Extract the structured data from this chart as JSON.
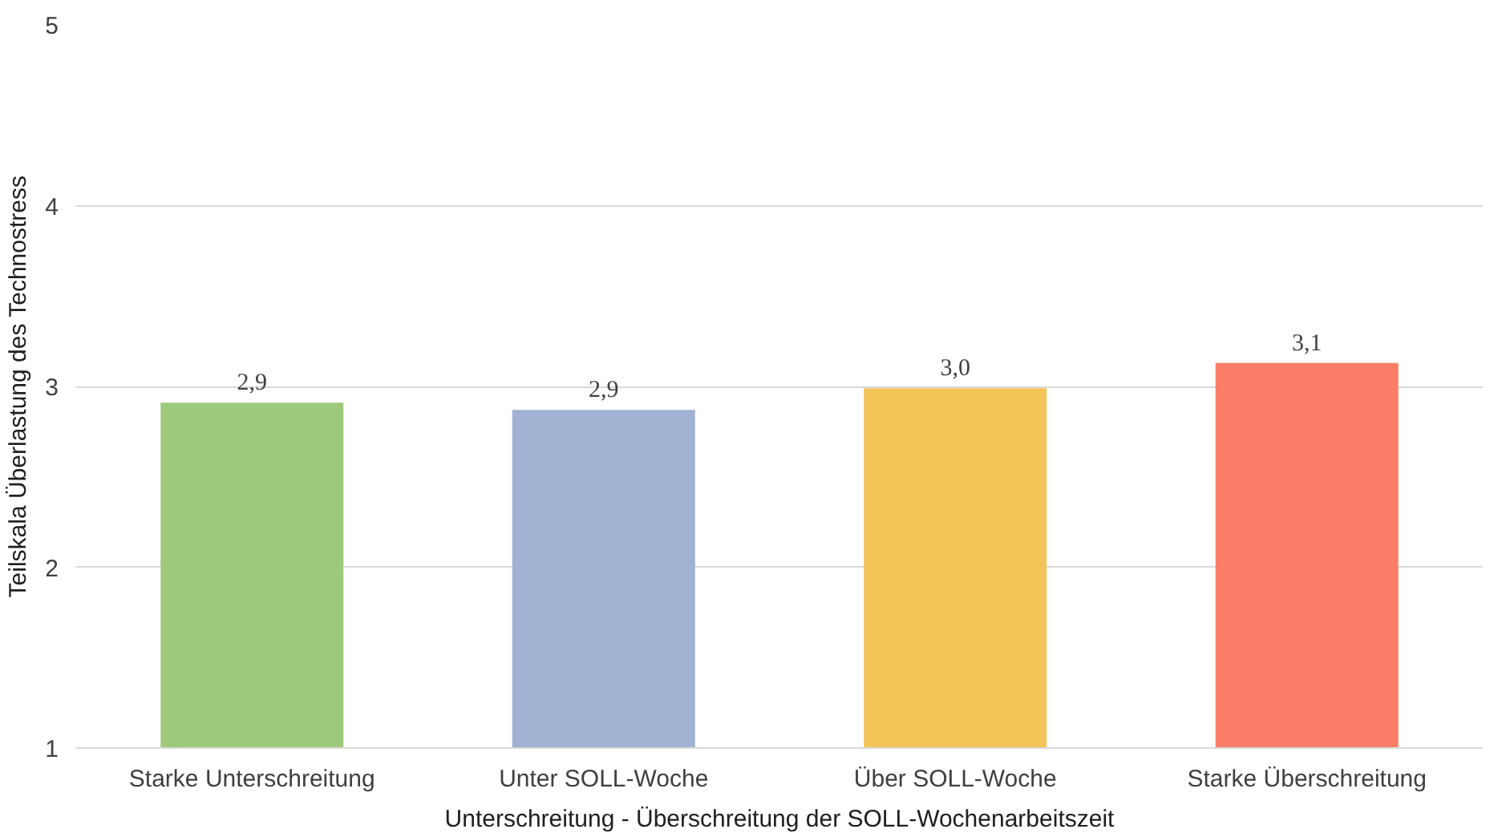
{
  "chart_data": {
    "type": "bar",
    "xlabel": "Unterschreitung - Überschreitung der SOLL-Wochenarbeitszeit",
    "ylabel": "Teilskala Überlastung des Technostress",
    "categories": [
      "Starke Unterschreitung",
      "Unter SOLL-Woche",
      "Über SOLL-Woche",
      "Starke Überschreitung"
    ],
    "values": [
      2.91,
      2.87,
      2.99,
      3.13
    ],
    "value_labels": [
      "2,9",
      "2,9",
      "3,0",
      "3,1"
    ],
    "colors": [
      "#9dc97a",
      "#a0b1d1",
      "#f3c458",
      "#fc7d67"
    ],
    "ylim": [
      1,
      5
    ],
    "yticks": [
      1,
      2,
      3,
      4,
      5
    ],
    "grid": "y"
  }
}
